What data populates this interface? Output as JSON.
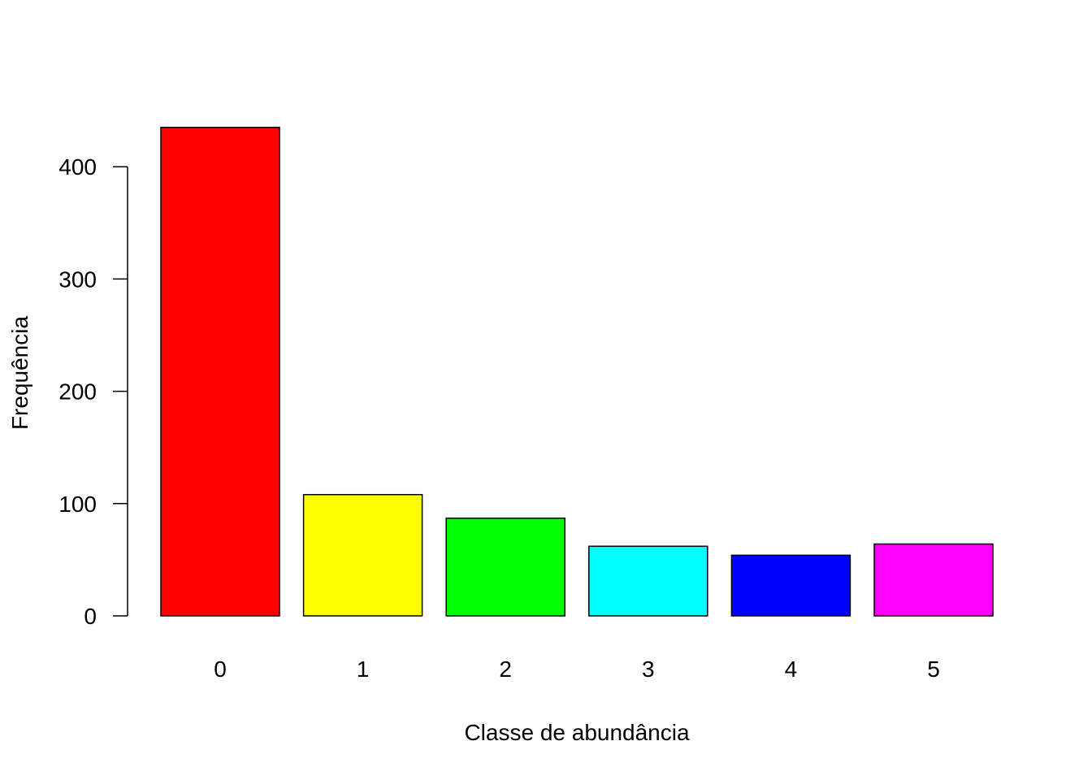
{
  "chart_data": {
    "type": "bar",
    "title": "",
    "xlabel": "Classe de abundância",
    "ylabel": "Frequência",
    "categories": [
      "0",
      "1",
      "2",
      "3",
      "4",
      "5"
    ],
    "values": [
      435,
      108,
      87,
      62,
      54,
      64
    ],
    "colors": [
      "#FF0000",
      "#FFFF00",
      "#00FF00",
      "#00FFFF",
      "#0000FF",
      "#FF00FF"
    ],
    "ylim": [
      0,
      435
    ],
    "yticks": [
      0,
      100,
      200,
      300,
      400
    ],
    "grid": false
  }
}
